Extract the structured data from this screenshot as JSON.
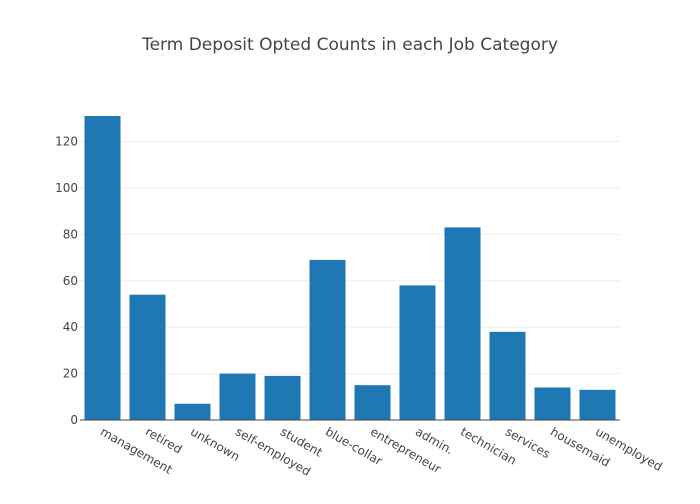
{
  "chart_data": {
    "type": "bar",
    "title": "Term Deposit Opted Counts in each Job Category",
    "xlabel": "",
    "ylabel": "",
    "categories": [
      "management",
      "retired",
      "unknown",
      "self-employed",
      "student",
      "blue-collar",
      "entrepreneur",
      "admin.",
      "technician",
      "services",
      "housemaid",
      "unemployed"
    ],
    "values": [
      131,
      54,
      7,
      20,
      19,
      69,
      15,
      58,
      83,
      38,
      14,
      13
    ],
    "ylim": [
      0,
      131
    ],
    "yticks": [
      0,
      20,
      40,
      60,
      80,
      100,
      120
    ],
    "grid": true,
    "legend": "none",
    "bar_color": "#1f77b4"
  }
}
